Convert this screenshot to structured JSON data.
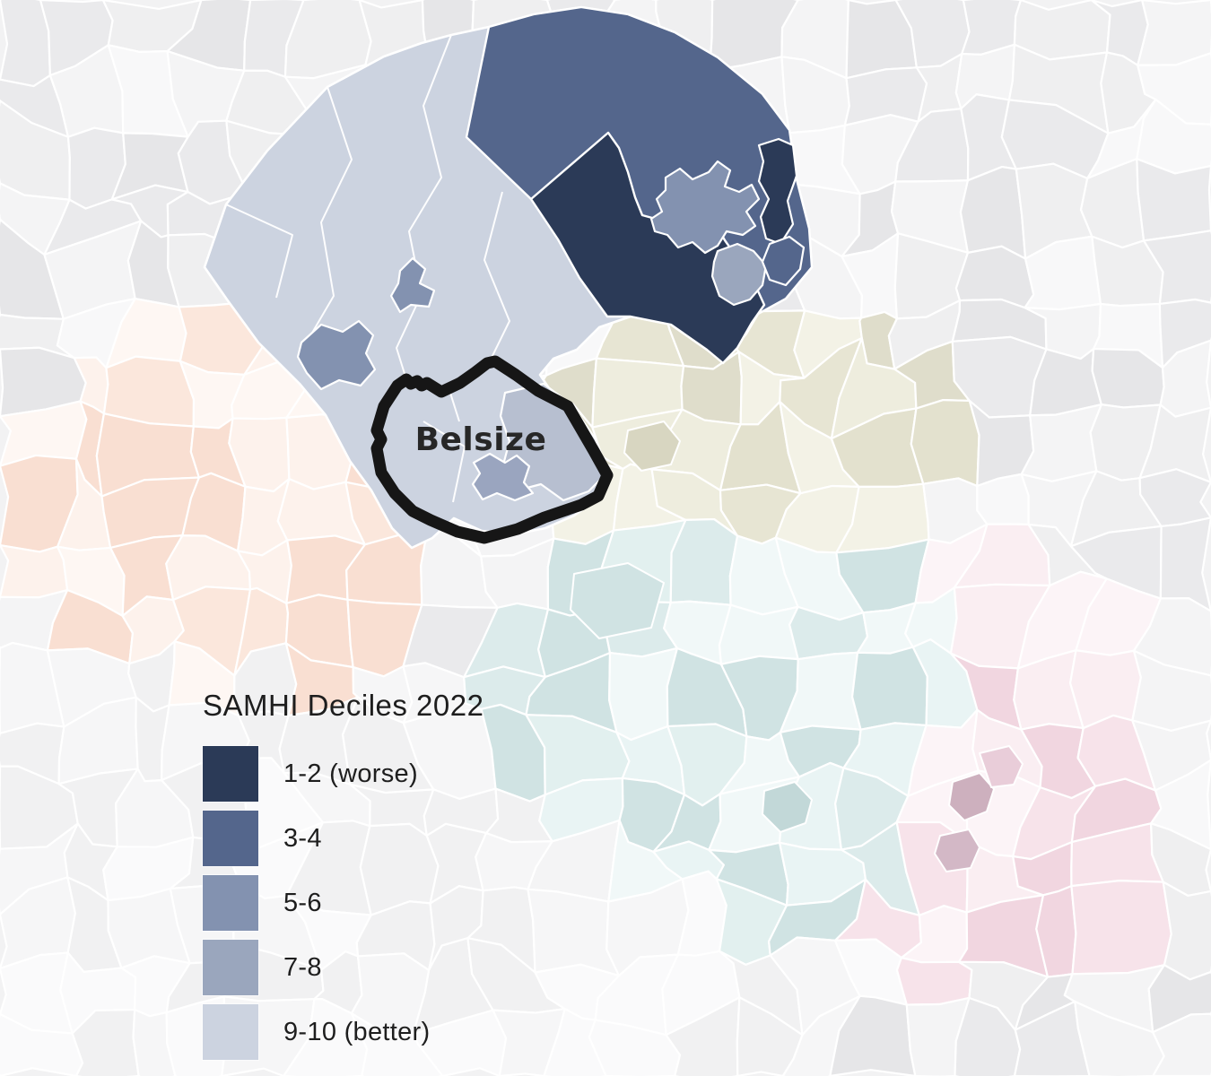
{
  "map": {
    "highlight_label": "Belsize",
    "colors": {
      "decile_1_2": "#2b3a57",
      "decile_3_4": "#54668c",
      "decile_5_6": "#8392b0",
      "decile_7_8": "#9aa6bd",
      "decile_9_10": "#ccd3e0",
      "belsize_east_region": "#b7bfd0",
      "belsize_small_region": "#9aa5bf",
      "highlight_outline": "#161616",
      "label_color": "#272727",
      "region_border": "#ffffff",
      "background": "#f2f2f3"
    },
    "faded_zone_palettes": {
      "gray": [
        "#efeff0",
        "#eaeaec",
        "#f4f4f5",
        "#e6e6e8",
        "#f8f8f9"
      ],
      "gray_light": [
        "#f6f6f7",
        "#f1f1f2",
        "#fafafb"
      ],
      "khaki": [
        "#eeedde",
        "#e7e5d3",
        "#dfddcb",
        "#f3f2e6",
        "#e3e1ce"
      ],
      "teal": [
        "#e9f4f4",
        "#dcebeb",
        "#d0e3e3",
        "#f1f8f8",
        "#e2f0ef"
      ],
      "pink": [
        "#faeef2",
        "#f7e3ea",
        "#f1d6e0",
        "#fcf4f7"
      ],
      "peach": [
        "#fdf2ec",
        "#fbe7dc",
        "#f9dfd2",
        "#fef7f3"
      ],
      "accent_mauve_1": "#cdb0be",
      "accent_mauve_2": "#d3b8c6",
      "accent_pink": "#e9cdd9",
      "accent_teal": "#c2d8d8",
      "accent_khaki": "#d8d6c1"
    }
  },
  "legend": {
    "title": "SAMHI Deciles 2022",
    "items": [
      {
        "label": "1-2 (worse)",
        "color": "#2b3a57"
      },
      {
        "label": "3-4",
        "color": "#54668c"
      },
      {
        "label": "5-6",
        "color": "#8392b0"
      },
      {
        "label": "7-8",
        "color": "#9aa6bd"
      },
      {
        "label": "9-10 (better)",
        "color": "#ccd3e0"
      }
    ]
  }
}
